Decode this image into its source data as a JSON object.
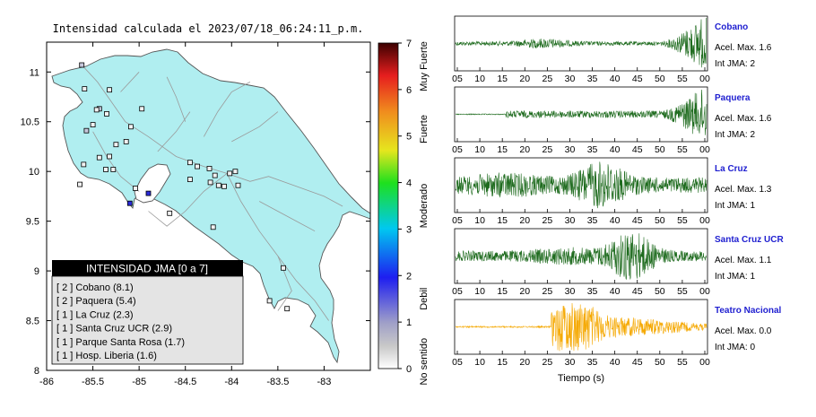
{
  "map_title": "Intensidad calculada el 2023/07/18_06:24:11_p.m.",
  "colors": {
    "land": "#b0eef0",
    "sea": "#ffffff",
    "trace_green": "#1e6b1e",
    "trace_orange": "#f5a800",
    "station_name": "#1f1fd0",
    "legend_header_bg": "#000000",
    "legend_bg": "#e4e4e4"
  },
  "map_axes": {
    "x_ticks": [
      "-86",
      "-85.5",
      "-85",
      "-84.5",
      "-84",
      "-83.5",
      "-83"
    ],
    "y_ticks": [
      "11",
      "10.5",
      "10",
      "9.5",
      "9",
      "8.5",
      "8"
    ]
  },
  "colorbar": {
    "ticks": [
      "0",
      "1",
      "2",
      "3",
      "4",
      "5",
      "6",
      "7"
    ],
    "categories": [
      "No sentido",
      "Debil",
      "Moderado",
      "Fuerte",
      "Muy Fuerte"
    ]
  },
  "legend": {
    "title": "INTENSIDAD JMA [0 a 7]",
    "entries": [
      {
        "text": "[ 2 ]  Cobano (8.1)"
      },
      {
        "text": "[ 2 ]  Paquera (5.4)"
      },
      {
        "text": "[ 1 ]  La Cruz (2.3)"
      },
      {
        "text": "[ 1 ]  Santa Cruz UCR (2.9)"
      },
      {
        "text": "[ 1 ]  Parque Santa Rosa (1.7)"
      },
      {
        "text": "[ 1 ]  Hosp. Liberia (1.6)"
      }
    ]
  },
  "traces": {
    "x_ticks": [
      "05",
      "10",
      "15",
      "20",
      "25",
      "30",
      "35",
      "40",
      "45",
      "50",
      "55",
      "00"
    ],
    "xlabel": "Tiempo (s)",
    "stations": [
      {
        "name": "Cobano",
        "acel": "Acel. Max. 1.6",
        "jma": "Int JMA: 2",
        "color": "green"
      },
      {
        "name": "Paquera",
        "acel": "Acel. Max. 1.6",
        "jma": "Int JMA: 2",
        "color": "green"
      },
      {
        "name": "La Cruz",
        "acel": "Acel. Max. 1.3",
        "jma": "Int JMA: 1",
        "color": "green"
      },
      {
        "name": "Santa Cruz UCR",
        "acel": "Acel. Max. 1.1",
        "jma": "Int JMA: 1",
        "color": "green"
      },
      {
        "name": "Teatro Nacional",
        "acel": "Acel. Max. 0.0",
        "jma": "Int JMA: 0",
        "color": "orange"
      }
    ]
  },
  "chart_data": [
    {
      "type": "scatter",
      "title": "Intensidad calculada el 2023/07/18_06:24:11_p.m.",
      "xlim": [
        -86,
        -82.5
      ],
      "ylim": [
        8,
        11.3
      ],
      "x_ticks": [
        -86,
        -85.5,
        -85,
        -84.5,
        -84,
        -83.5,
        -83
      ],
      "y_ticks": [
        8,
        8.5,
        9,
        9.5,
        10,
        10.5,
        11
      ],
      "colorbar": {
        "min": 0,
        "max": 7
      },
      "stations": [
        {
          "lon": -85.62,
          "lat": 11.07,
          "intensity": 1
        },
        {
          "lon": -85.59,
          "lat": 10.83,
          "intensity": 0
        },
        {
          "lon": -85.43,
          "lat": 10.63,
          "intensity": 1
        },
        {
          "lon": -85.46,
          "lat": 10.62,
          "intensity": 0
        },
        {
          "lon": -85.32,
          "lat": 10.82,
          "intensity": 0
        },
        {
          "lon": -85.57,
          "lat": 10.41,
          "intensity": 1
        },
        {
          "lon": -85.5,
          "lat": 10.47,
          "intensity": 0
        },
        {
          "lon": -85.35,
          "lat": 10.58,
          "intensity": 0
        },
        {
          "lon": -85.25,
          "lat": 10.27,
          "intensity": 0
        },
        {
          "lon": -85.09,
          "lat": 10.45,
          "intensity": 0
        },
        {
          "lon": -85.14,
          "lat": 10.3,
          "intensity": 0
        },
        {
          "lon": -84.97,
          "lat": 10.63,
          "intensity": 0
        },
        {
          "lon": -85.43,
          "lat": 10.14,
          "intensity": 0
        },
        {
          "lon": -85.32,
          "lat": 10.15,
          "intensity": 0
        },
        {
          "lon": -85.36,
          "lat": 10.02,
          "intensity": 0
        },
        {
          "lon": -85.64,
          "lat": 9.87,
          "intensity": 0
        },
        {
          "lon": -85.6,
          "lat": 10.07,
          "intensity": 0
        },
        {
          "lon": -85.28,
          "lat": 10.02,
          "intensity": 0
        },
        {
          "lon": -85.04,
          "lat": 9.83,
          "intensity": 0
        },
        {
          "lon": -85.1,
          "lat": 9.68,
          "intensity": 2
        },
        {
          "lon": -84.9,
          "lat": 9.78,
          "intensity": 2
        },
        {
          "lon": -84.45,
          "lat": 10.09,
          "intensity": 0
        },
        {
          "lon": -84.37,
          "lat": 10.05,
          "intensity": 0
        },
        {
          "lon": -84.24,
          "lat": 10.03,
          "intensity": 0
        },
        {
          "lon": -84.18,
          "lat": 9.96,
          "intensity": 0
        },
        {
          "lon": -84.02,
          "lat": 9.98,
          "intensity": 0
        },
        {
          "lon": -83.96,
          "lat": 10.0,
          "intensity": 0
        },
        {
          "lon": -84.45,
          "lat": 9.92,
          "intensity": 0
        },
        {
          "lon": -84.14,
          "lat": 9.86,
          "intensity": 0
        },
        {
          "lon": -84.23,
          "lat": 9.89,
          "intensity": 0
        },
        {
          "lon": -83.93,
          "lat": 9.86,
          "intensity": 0
        },
        {
          "lon": -84.08,
          "lat": 9.85,
          "intensity": 0
        },
        {
          "lon": -84.67,
          "lat": 9.58,
          "intensity": 0
        },
        {
          "lon": -84.2,
          "lat": 9.44,
          "intensity": 0
        },
        {
          "lon": -83.44,
          "lat": 9.03,
          "intensity": 0
        },
        {
          "lon": -83.59,
          "lat": 8.7,
          "intensity": 0
        },
        {
          "lon": -83.4,
          "lat": 8.62,
          "intensity": 0
        }
      ]
    },
    {
      "type": "line",
      "xlabel": "Tiempo (s)",
      "x_ticks": [
        "05",
        "10",
        "15",
        "20",
        "25",
        "30",
        "35",
        "40",
        "45",
        "50",
        "55",
        "00"
      ],
      "series": [
        {
          "name": "Cobano",
          "acel_max": 1.6,
          "int_jma": 2
        },
        {
          "name": "Paquera",
          "acel_max": 1.6,
          "int_jma": 2
        },
        {
          "name": "La Cruz",
          "acel_max": 1.3,
          "int_jma": 1
        },
        {
          "name": "Santa Cruz UCR",
          "acel_max": 1.1,
          "int_jma": 1
        },
        {
          "name": "Teatro Nacional",
          "acel_max": 0.0,
          "int_jma": 0
        }
      ]
    }
  ]
}
